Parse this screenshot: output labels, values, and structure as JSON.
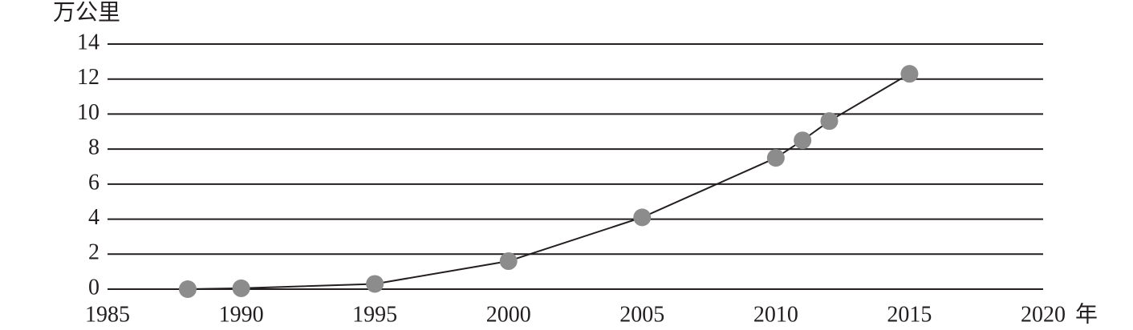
{
  "chart_data": {
    "type": "line",
    "ylabel": "万公里",
    "xlabel": "年",
    "x": [
      1988,
      1990,
      1995,
      2000,
      2005,
      2010,
      2011,
      2012,
      2015
    ],
    "series": [
      {
        "values": [
          0,
          0.05,
          0.3,
          1.6,
          4.1,
          7.5,
          8.5,
          9.6,
          12.3
        ],
        "color": "#231f20",
        "marker_color": "#8c8c8c"
      }
    ],
    "xlim": [
      1985,
      2020
    ],
    "xticks": [
      1985,
      1990,
      1995,
      2000,
      2005,
      2010,
      2015,
      2020
    ],
    "ylim": [
      0,
      14
    ],
    "yticks": [
      0,
      2,
      4,
      6,
      8,
      10,
      12,
      14
    ],
    "grid": true
  }
}
